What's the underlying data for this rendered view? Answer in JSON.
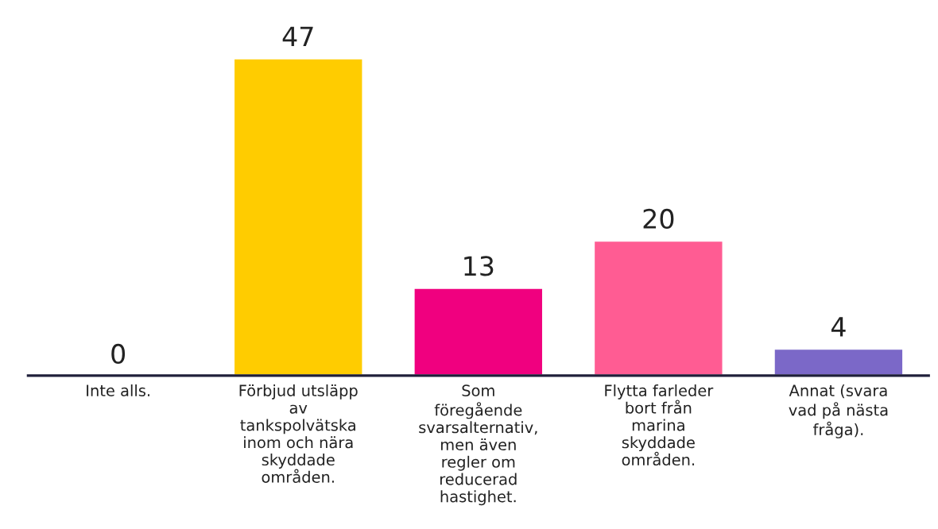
{
  "chart_data": {
    "type": "bar",
    "data_labels": true,
    "categories": [
      "Inte alls.",
      "Förbjud utsläpp\nav\ntankspolvätska\ninom och nära\nskyddade\nområden.",
      "Som\nföregående\nsvarsalternativ,\nmen även\nregler om\nreducerad\nhastighet.",
      "Flytta farleder\nbort från\nmarina\nskyddade\nområden.",
      "Annat (svara\nvad på nästa\nfråga)."
    ],
    "values": [
      0,
      47,
      13,
      20,
      4
    ],
    "colors": [
      null,
      "#ffcc00",
      "#f0007f",
      "#ff5c93",
      "#7b68c8"
    ]
  }
}
